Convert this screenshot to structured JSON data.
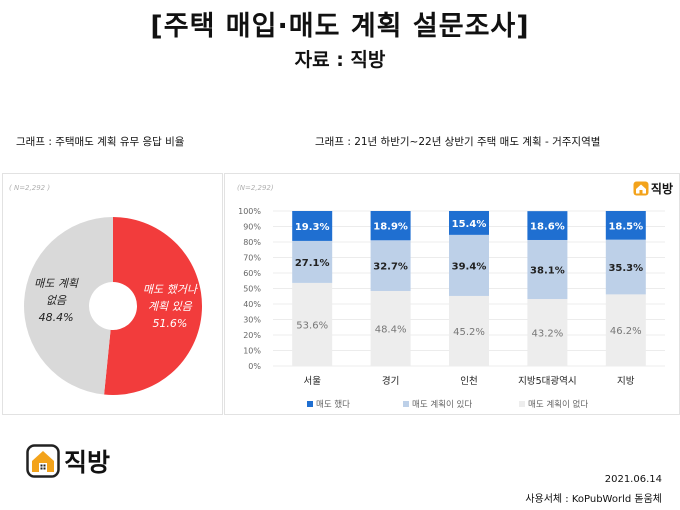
{
  "title": "[주택 매입·매도 계획 설문조사]",
  "subtitle": "자료 : 직방",
  "left_caption": "그래프 : 주택매도 계획 유무 응답 비율",
  "right_caption": "그래프 : 21년 하반기~22년 상반기 주택 매도 계획 - 거주지역별",
  "brand": "직방",
  "footer": {
    "date": "2021.06.14",
    "font_note": "사용서체 : KoPubWorld 돋움체"
  },
  "colors": {
    "red": "#f23c3c",
    "gray_pie": "#d9d9d9",
    "blue": "#1f6fd1",
    "light_blue": "#bdd0e8",
    "light_gray": "#ededed",
    "brand_orange": "#f3a31b"
  },
  "chart_data": [
    {
      "type": "pie",
      "n_label": "( N=2,292 )",
      "slices": [
        {
          "label_lines": [
            "매도 했거나",
            "계획 있음"
          ],
          "value": 51.6,
          "value_label": "51.6%",
          "color": "#f23c3c"
        },
        {
          "label_lines": [
            "매도 계획",
            "없음"
          ],
          "value": 48.4,
          "value_label": "48.4%",
          "color": "#d9d9d9"
        }
      ]
    },
    {
      "type": "bar",
      "stacked": true,
      "n_label": "(N=2,292)",
      "categories": [
        "서울",
        "경기",
        "인천",
        "지방5대광역시",
        "지방"
      ],
      "series": [
        {
          "name": "매도 했다",
          "values": [
            19.3,
            18.9,
            15.4,
            18.6,
            18.5
          ],
          "color": "#1f6fd1"
        },
        {
          "name": "매도 계획이 있다",
          "values": [
            27.1,
            32.7,
            39.4,
            38.1,
            35.3
          ],
          "color": "#bdd0e8"
        },
        {
          "name": "매도 계획이 없다",
          "values": [
            53.6,
            48.4,
            45.2,
            43.2,
            46.2
          ],
          "color": "#ededed"
        }
      ],
      "yticks": [
        "0%",
        "10%",
        "20%",
        "30%",
        "40%",
        "50%",
        "60%",
        "70%",
        "80%",
        "90%",
        "100%"
      ],
      "ylim": [
        0,
        100
      ],
      "grid": true,
      "legend": "bottom"
    }
  ]
}
